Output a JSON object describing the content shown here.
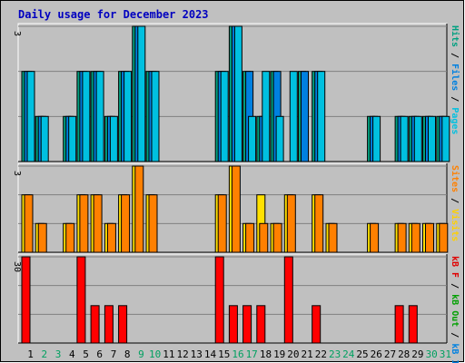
{
  "title": "Daily usage for December 2023",
  "chart_data": {
    "type": "bar",
    "title": "Daily usage for December 2023",
    "days": [
      "1",
      "2",
      "3",
      "4",
      "5",
      "6",
      "7",
      "8",
      "9",
      "10",
      "11",
      "12",
      "13",
      "14",
      "15",
      "16",
      "17",
      "18",
      "19",
      "20",
      "21",
      "22",
      "23",
      "24",
      "25",
      "26",
      "27",
      "28",
      "29",
      "30",
      "31"
    ],
    "weekend_days": [
      "2",
      "3",
      "9",
      "10",
      "16",
      "17",
      "23",
      "24",
      "30",
      "31"
    ],
    "panels": [
      {
        "name": "hits-files-pages",
        "ymax": 3,
        "ymax_label": "3",
        "legend": [
          {
            "text": "Pages",
            "color": "#00c0e0"
          },
          {
            "text": " / ",
            "color": "#000000"
          },
          {
            "text": "Files",
            "color": "#0080e0"
          },
          {
            "text": " / ",
            "color": "#000000"
          },
          {
            "text": "Hits",
            "color": "#00a080"
          }
        ],
        "series": [
          {
            "name": "Hits",
            "color": "#00a080",
            "values": [
              2,
              1,
              0,
              1,
              2,
              2,
              1,
              2,
              3,
              2,
              0,
              0,
              0,
              0,
              2,
              3,
              2,
              1,
              2,
              0,
              2,
              2,
              0,
              0,
              0,
              1,
              0,
              1,
              1,
              1,
              1
            ]
          },
          {
            "name": "Files",
            "color": "#0080e0",
            "values": [
              2,
              1,
              0,
              1,
              2,
              2,
              1,
              2,
              3,
              2,
              0,
              0,
              0,
              0,
              2,
              3,
              2,
              1,
              2,
              0,
              2,
              2,
              0,
              0,
              0,
              1,
              0,
              1,
              1,
              1,
              1
            ]
          },
          {
            "name": "Pages",
            "color": "#00c0e0",
            "values": [
              2,
              1,
              0,
              1,
              2,
              2,
              1,
              2,
              3,
              2,
              0,
              0,
              0,
              0,
              2,
              3,
              1,
              2,
              1,
              2,
              0,
              2,
              0,
              0,
              0,
              1,
              0,
              1,
              1,
              1,
              1
            ]
          }
        ]
      },
      {
        "name": "visits-sites",
        "ymax": 3,
        "ymax_label": "3",
        "legend": [
          {
            "text": "Visits",
            "color": "#ffd000"
          },
          {
            "text": " / ",
            "color": "#000000"
          },
          {
            "text": "Sites",
            "color": "#ff8000"
          }
        ],
        "series": [
          {
            "name": "Visits",
            "color": "#ffe000",
            "values": [
              2,
              1,
              0,
              1,
              2,
              2,
              1,
              2,
              3,
              2,
              0,
              0,
              0,
              0,
              2,
              3,
              1,
              2,
              1,
              2,
              0,
              2,
              1,
              0,
              0,
              1,
              0,
              1,
              1,
              1,
              1
            ]
          },
          {
            "name": "Sites",
            "color": "#ff8000",
            "values": [
              2,
              1,
              0,
              1,
              2,
              2,
              1,
              2,
              3,
              2,
              0,
              0,
              0,
              0,
              2,
              3,
              1,
              1,
              1,
              2,
              0,
              2,
              1,
              0,
              0,
              1,
              0,
              1,
              1,
              1,
              1
            ]
          }
        ]
      },
      {
        "name": "kbytes",
        "ymax": 30,
        "ymax_label": "30",
        "legend": [
          {
            "text": "kB In",
            "color": "#0080e0"
          },
          {
            "text": " / ",
            "color": "#000000"
          },
          {
            "text": "kB Out",
            "color": "#00a000"
          },
          {
            "text": " / ",
            "color": "#000000"
          },
          {
            "text": "kB F",
            "color": "#e00000"
          }
        ],
        "series": [
          {
            "name": "kB F",
            "color": "#ff0000",
            "values": [
              30,
              0,
              0,
              0,
              30,
              13,
              13,
              13,
              0,
              0,
              0,
              0,
              0,
              0,
              30,
              13,
              13,
              13,
              0,
              30,
              0,
              13,
              0,
              0,
              0,
              0,
              0,
              13,
              13,
              0,
              0
            ]
          }
        ]
      }
    ],
    "colors": {
      "background": "#c0c0c0",
      "frame": "#ffffff",
      "gridline": "#808080",
      "title": "#0000c0",
      "weekday_label": "#000000",
      "weekend_label": "#00a060"
    }
  }
}
